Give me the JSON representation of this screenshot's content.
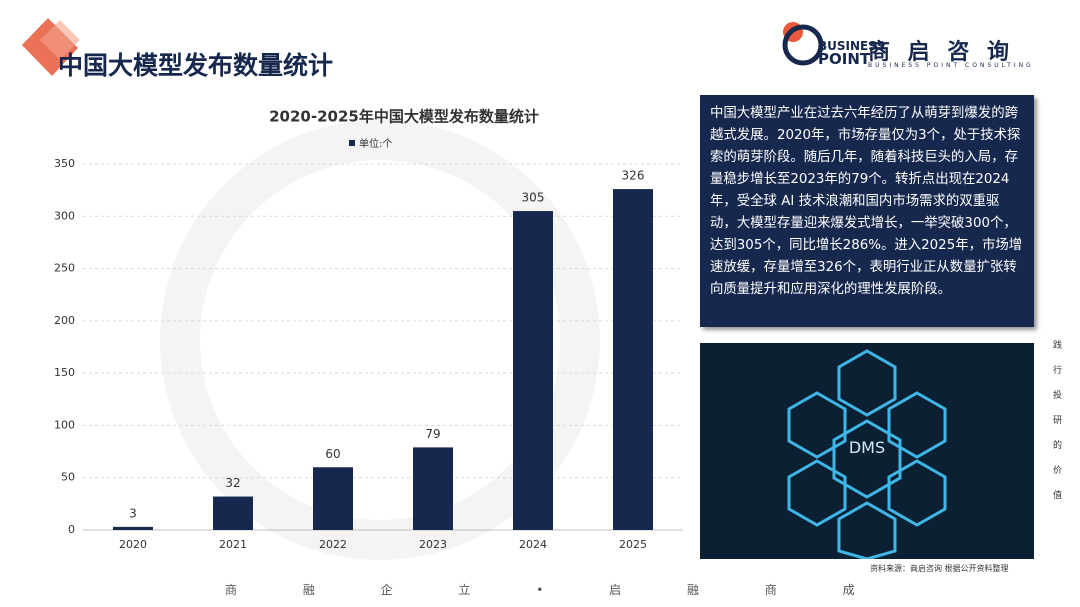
{
  "header": {
    "title": "中国大模型发布数量统计"
  },
  "logo": {
    "line1": "BUSINESS",
    "line2": "POINT",
    "name": "商 启 咨 询",
    "tagline": "BUSINESS POINT CONSULTING"
  },
  "chart_data": {
    "type": "bar",
    "title": "2020-2025年中国大模型发布数量统计",
    "legend": "单位:个",
    "categories": [
      "2020",
      "2021",
      "2022",
      "2023",
      "2024",
      "2025"
    ],
    "values": [
      3,
      32,
      60,
      79,
      305,
      326
    ],
    "color": "#17284f",
    "ylim": [
      0,
      350
    ],
    "yticks": [
      0,
      50,
      100,
      150,
      200,
      250,
      300,
      350
    ],
    "grid": true
  },
  "description": "中国大模型产业在过去六年经历了从萌芽到爆发的跨越式发展。2020年，市场存量仅为3个，处于技术探索的萌芽阶段。随后几年，随着科技巨头的入局，存量稳步增长至2023年的79个。转折点出现在2024年，受全球 AI 技术浪潮和国内市场需求的双重驱动，大模型存量迎来爆发式增长，一举突破300个，达到305个，同比增长286%。进入2025年，市场增速放缓，存量增至326个，表明行业正从数量扩张转向质量提升和应用深化的理性发展阶段。",
  "image_label": "DMS",
  "side_text": "践行投研的价值",
  "source": "资料来源：商启咨询 根据公开资料整理",
  "footer": "商 融 企 立 • 启 融 商 成"
}
